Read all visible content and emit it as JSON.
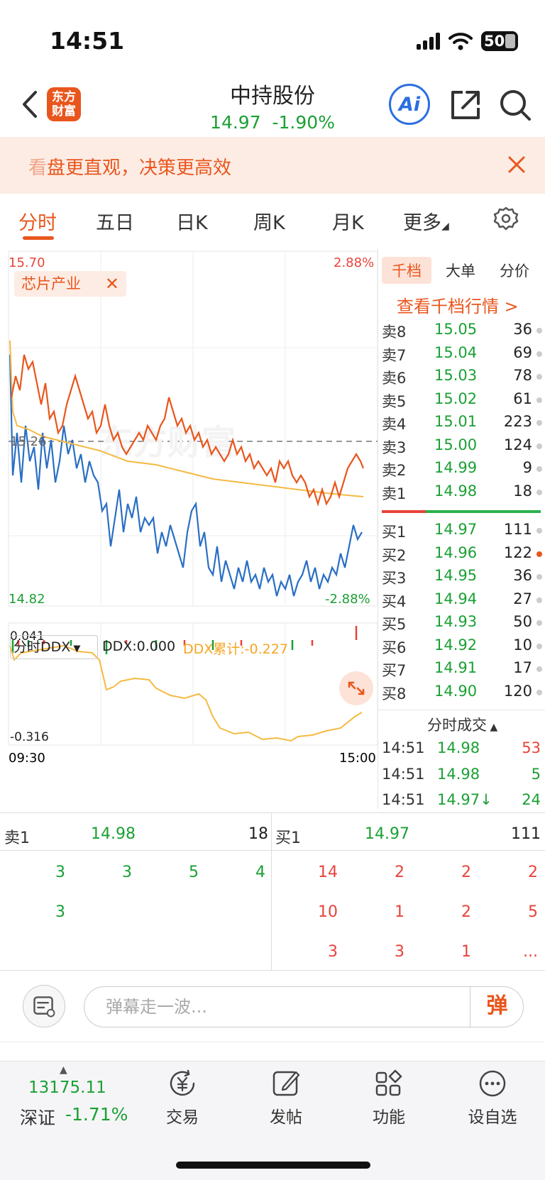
{
  "status": {
    "time": "14:51",
    "battery": "50"
  },
  "header": {
    "logo": "东方\n财富",
    "name": "中持股份",
    "price_line": "14.97  -1.90%",
    "ai": "Ai"
  },
  "promo": {
    "text_lead": "看",
    "text": "盘更直观，决策更高效"
  },
  "tabs": [
    "分时",
    "五日",
    "日K",
    "周K",
    "月K",
    "更多"
  ],
  "chart": {
    "high": "15.70",
    "low": "14.82",
    "mid": "15.26",
    "pct_high": "2.88%",
    "pct_low": "-2.88%",
    "tag": "芯片产业",
    "watermark": "东方财富",
    "ddx_selector": "分时DDX",
    "ddx": "DDX:0.000",
    "ddx_cum": "DDX累计:-0.227",
    "ddx_high": "0.041",
    "ddx_low": "-0.316",
    "t_start": "09:30",
    "t_end": "15:00",
    "colors": {
      "price": "#e9561d",
      "avg": "#f5b942",
      "sector": "#2a6fc4",
      "up": "#e8433a",
      "down": "#1aa034"
    }
  },
  "orderbook": {
    "tabs": [
      "千档",
      "大单",
      "分价"
    ],
    "link": "查看千档行情 >",
    "sells": [
      {
        "label": "卖8",
        "price": "15.05",
        "vol": "36"
      },
      {
        "label": "卖7",
        "price": "15.04",
        "vol": "69"
      },
      {
        "label": "卖6",
        "price": "15.03",
        "vol": "78"
      },
      {
        "label": "卖5",
        "price": "15.02",
        "vol": "61"
      },
      {
        "label": "卖4",
        "price": "15.01",
        "vol": "223"
      },
      {
        "label": "卖3",
        "price": "15.00",
        "vol": "124"
      },
      {
        "label": "卖2",
        "price": "14.99",
        "vol": "9"
      },
      {
        "label": "卖1",
        "price": "14.98",
        "vol": "18"
      }
    ],
    "buys": [
      {
        "label": "买1",
        "price": "14.97",
        "vol": "111"
      },
      {
        "label": "买2",
        "price": "14.96",
        "vol": "122"
      },
      {
        "label": "买3",
        "price": "14.95",
        "vol": "36"
      },
      {
        "label": "买4",
        "price": "14.94",
        "vol": "27"
      },
      {
        "label": "买5",
        "price": "14.93",
        "vol": "50"
      },
      {
        "label": "买6",
        "price": "14.92",
        "vol": "10"
      },
      {
        "label": "买7",
        "price": "14.91",
        "vol": "17"
      },
      {
        "label": "买8",
        "price": "14.90",
        "vol": "120"
      }
    ],
    "trades_title": "分时成交",
    "trades": [
      {
        "time": "14:51",
        "price": "14.98",
        "vol": "53",
        "color": "#e8433a"
      },
      {
        "time": "14:51",
        "price": "14.98",
        "vol": "5",
        "color": "#1aa034"
      },
      {
        "time": "14:51",
        "price": "14.97↓",
        "vol": "24",
        "color": "#1aa034"
      }
    ]
  },
  "level": {
    "sell": {
      "label": "卖1",
      "price": "14.98",
      "vol": "18"
    },
    "buy": {
      "label": "买1",
      "price": "14.97",
      "vol": "111"
    },
    "sell_grid": [
      [
        "3",
        "3",
        "5",
        "4"
      ],
      [
        "3",
        "",
        "",
        ""
      ]
    ],
    "buy_grid": [
      [
        "14",
        "2",
        "2",
        "2"
      ],
      [
        "10",
        "1",
        "2",
        "5"
      ],
      [
        "3",
        "3",
        "1",
        "..."
      ]
    ]
  },
  "comment": {
    "placeholder": "弹幕走一波...",
    "send": "弹"
  },
  "nav": {
    "index_value": "13175.11",
    "index_name": "深证",
    "index_pct": "-1.71%",
    "items": [
      "交易",
      "发帖",
      "功能",
      "设自选"
    ]
  }
}
